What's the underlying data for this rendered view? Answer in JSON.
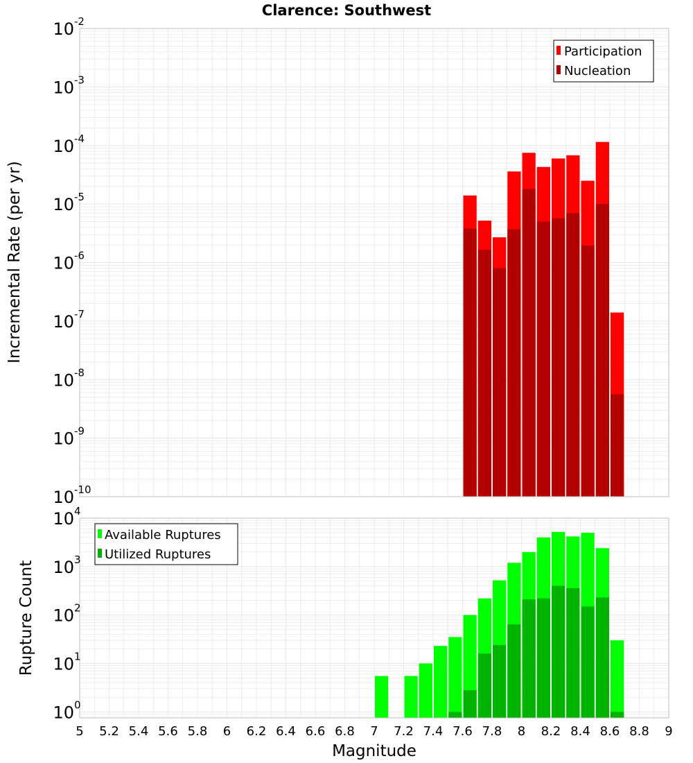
{
  "title": "Clarence: Southwest",
  "xlabel": "Magnitude",
  "x_ticks": [
    "5",
    "5.2",
    "5.4",
    "5.6",
    "5.8",
    "6",
    "6.2",
    "6.4",
    "6.6",
    "6.8",
    "7",
    "7.2",
    "7.4",
    "7.6",
    "7.8",
    "8",
    "8.2",
    "8.4",
    "8.6",
    "8.8",
    "9"
  ],
  "colors": {
    "participation": "#ff0000",
    "nucleation": "#b30000",
    "available": "#00ff00",
    "utilized": "#00b300",
    "grid": "#e6e6e6",
    "frame": "#bfbfbf"
  },
  "chart_data": [
    {
      "type": "bar",
      "ylabel": "Incremental Rate (per yr)",
      "y_scale": "log",
      "ylim": [
        1e-10,
        0.01
      ],
      "y_ticks": [
        {
          "base": "10",
          "exp": "-10"
        },
        {
          "base": "10",
          "exp": "-9"
        },
        {
          "base": "10",
          "exp": "-8"
        },
        {
          "base": "10",
          "exp": "-7"
        },
        {
          "base": "10",
          "exp": "-6"
        },
        {
          "base": "10",
          "exp": "-5"
        },
        {
          "base": "10",
          "exp": "-4"
        },
        {
          "base": "10",
          "exp": "-3"
        },
        {
          "base": "10",
          "exp": "-2"
        }
      ],
      "xlim": [
        5,
        9
      ],
      "bin_width": 0.1,
      "legend_position": "top-right",
      "legend": [
        "Participation",
        "Nucleation"
      ],
      "series": [
        {
          "name": "Participation",
          "x": [
            7.65,
            7.75,
            7.85,
            7.95,
            8.05,
            8.15,
            8.25,
            8.35,
            8.45,
            8.55,
            8.65
          ],
          "values": [
            1.4e-05,
            5.2e-06,
            2.7e-06,
            3.6e-05,
            7.5e-05,
            4.3e-05,
            6e-05,
            6.8e-05,
            2.5e-05,
            0.000115,
            1.4e-07
          ]
        },
        {
          "name": "Nucleation",
          "x": [
            7.65,
            7.75,
            7.85,
            7.95,
            8.05,
            8.15,
            8.25,
            8.35,
            8.45,
            8.55,
            8.65
          ],
          "values": [
            3.8e-06,
            1.65e-06,
            8e-07,
            3.7e-06,
            1.8e-05,
            5e-06,
            5.7e-06,
            7e-06,
            1.95e-06,
            1e-05,
            5.6e-09
          ]
        }
      ]
    },
    {
      "type": "bar",
      "ylabel": "Rupture Count",
      "y_scale": "log",
      "ylim": [
        0.75,
        10000
      ],
      "y_ticks": [
        {
          "base": "10",
          "exp": "0"
        },
        {
          "base": "10",
          "exp": "1"
        },
        {
          "base": "10",
          "exp": "2"
        },
        {
          "base": "10",
          "exp": "3"
        },
        {
          "base": "10",
          "exp": "4"
        }
      ],
      "xlim": [
        5,
        9
      ],
      "bin_width": 0.1,
      "legend_position": "top-left",
      "legend": [
        "Available Ruptures",
        "Utilized Ruptures"
      ],
      "series": [
        {
          "name": "Available Ruptures",
          "x": [
            7.05,
            7.25,
            7.35,
            7.45,
            7.55,
            7.65,
            7.75,
            7.85,
            7.95,
            8.05,
            8.15,
            8.25,
            8.35,
            8.45,
            8.55,
            8.65
          ],
          "values": [
            5.5,
            5.5,
            10,
            23,
            35,
            100,
            220,
            520,
            1200,
            2000,
            4000,
            5200,
            4200,
            5000,
            2400,
            30
          ]
        },
        {
          "name": "Utilized Ruptures",
          "x": [
            7.55,
            7.65,
            7.75,
            7.85,
            7.95,
            8.05,
            8.15,
            8.25,
            8.35,
            8.45,
            8.55,
            8.65
          ],
          "values": [
            1,
            2.8,
            16,
            24,
            64,
            210,
            220,
            400,
            360,
            150,
            230,
            1
          ]
        }
      ]
    }
  ]
}
